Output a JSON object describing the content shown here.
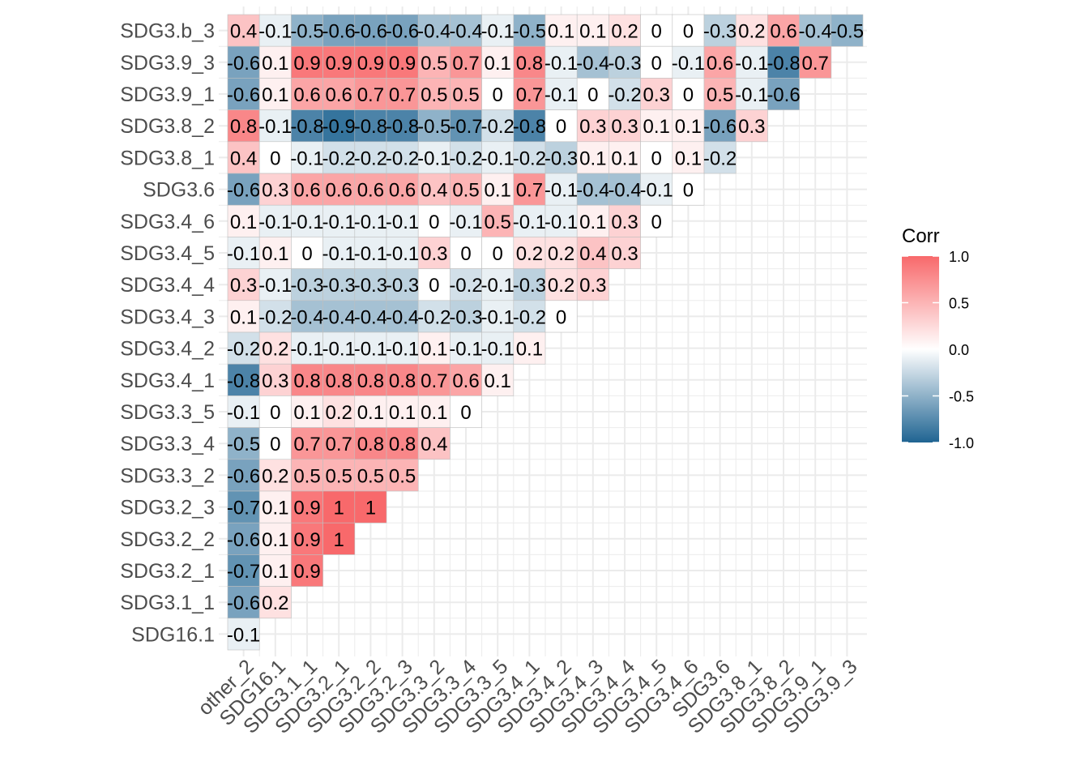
{
  "chart_data": {
    "type": "heatmap",
    "layout": "lower-triangle correlation matrix",
    "x_labels": [
      "other_2",
      "SDG16.1",
      "SDG3.1_1",
      "SDG3.2_1",
      "SDG3.2_2",
      "SDG3.2_3",
      "SDG3.3_2",
      "SDG3.3_4",
      "SDG3.3_5",
      "SDG3.4_1",
      "SDG3.4_2",
      "SDG3.4_3",
      "SDG3.4_4",
      "SDG3.4_5",
      "SDG3.4_6",
      "SDG3.6",
      "SDG3.8_1",
      "SDG3.8_2",
      "SDG3.9_1",
      "SDG3.9_3"
    ],
    "y_labels": [
      "SDG3.b_3",
      "SDG3.9_3",
      "SDG3.9_1",
      "SDG3.8_2",
      "SDG3.8_1",
      "SDG3.6",
      "SDG3.4_6",
      "SDG3.4_5",
      "SDG3.4_4",
      "SDG3.4_3",
      "SDG3.4_2",
      "SDG3.4_1",
      "SDG3.3_5",
      "SDG3.3_4",
      "SDG3.3_2",
      "SDG3.2_3",
      "SDG3.2_2",
      "SDG3.2_1",
      "SDG3.1_1",
      "SDG16.1"
    ],
    "rows": [
      {
        "label": "SDG3.b_3",
        "values": [
          0.4,
          -0.1,
          -0.5,
          -0.6,
          -0.6,
          -0.6,
          -0.4,
          -0.4,
          -0.1,
          -0.5,
          0.1,
          0.1,
          0.2,
          0,
          0,
          -0.3,
          0.2,
          0.6,
          -0.4,
          -0.5
        ],
        "labels": [
          "0.4",
          "-0.1",
          "-0.5",
          "-0.6",
          "-0.6",
          "-0.6",
          "-0.4",
          "-0.4",
          "-0.1",
          "-0.5",
          "0.1",
          "0.1",
          "0.2",
          "0",
          "0",
          "-0.3",
          "0.2",
          "0.6",
          "-0.4",
          "-0.5"
        ]
      },
      {
        "label": "SDG3.9_3",
        "values": [
          -0.6,
          0.1,
          0.9,
          0.9,
          0.9,
          0.9,
          0.5,
          0.7,
          0.1,
          0.8,
          -0.1,
          -0.4,
          -0.3,
          0,
          -0.1,
          0.6,
          -0.1,
          -0.8,
          0.7
        ],
        "labels": [
          "-0.6",
          "0.1",
          "0.9",
          "0.9",
          "0.9",
          "0.9",
          "0.5",
          "0.7",
          "0.1",
          "0.8",
          "-0.1",
          "-0.4",
          "-0.3",
          "0",
          "-0.1",
          "0.6",
          "-0.1",
          "-0.8",
          "0.7"
        ]
      },
      {
        "label": "SDG3.9_1",
        "values": [
          -0.6,
          0.1,
          0.6,
          0.6,
          0.7,
          0.7,
          0.5,
          0.5,
          0,
          0.7,
          -0.1,
          0,
          -0.2,
          0.3,
          0,
          0.5,
          -0.1,
          -0.6
        ],
        "labels": [
          "-0.6",
          "0.1",
          "0.6",
          "0.6",
          "0.7",
          "0.7",
          "0.5",
          "0.5",
          "0",
          "0.7",
          "-0.1",
          "0",
          "-0.2",
          "0.3",
          "0",
          "0.5",
          "-0.1",
          "-0.6"
        ]
      },
      {
        "label": "SDG3.8_2",
        "values": [
          0.8,
          -0.1,
          -0.8,
          -0.9,
          -0.8,
          -0.8,
          -0.5,
          -0.7,
          -0.2,
          -0.8,
          0,
          0.3,
          0.3,
          0.1,
          0.1,
          -0.6,
          0.3
        ],
        "labels": [
          "0.8",
          "-0.1",
          "-0.8",
          "-0.9",
          "-0.8",
          "-0.8",
          "-0.5",
          "-0.7",
          "-0.2",
          "-0.8",
          "0",
          "0.3",
          "0.3",
          "0.1",
          "0.1",
          "-0.6",
          "0.3"
        ]
      },
      {
        "label": "SDG3.8_1",
        "values": [
          0.4,
          0,
          -0.1,
          -0.2,
          -0.2,
          -0.2,
          -0.1,
          -0.2,
          -0.1,
          -0.2,
          -0.3,
          0.1,
          0.1,
          0,
          0.1,
          -0.2
        ],
        "labels": [
          "0.4",
          "0",
          "-0.1",
          "-0.2",
          "-0.2",
          "-0.2",
          "-0.1",
          "-0.2",
          "-0.1",
          "-0.2",
          "-0.3",
          "0.1",
          "0.1",
          "0",
          "0.1",
          "-0.2"
        ]
      },
      {
        "label": "SDG3.6",
        "values": [
          -0.6,
          0.3,
          0.6,
          0.6,
          0.6,
          0.6,
          0.4,
          0.5,
          0.1,
          0.7,
          -0.1,
          -0.4,
          -0.4,
          -0.1,
          0
        ],
        "labels": [
          "-0.6",
          "0.3",
          "0.6",
          "0.6",
          "0.6",
          "0.6",
          "0.4",
          "0.5",
          "0.1",
          "0.7",
          "-0.1",
          "-0.4",
          "-0.4",
          "-0.1",
          "0"
        ]
      },
      {
        "label": "SDG3.4_6",
        "values": [
          0.1,
          -0.1,
          -0.1,
          -0.1,
          -0.1,
          -0.1,
          0,
          -0.1,
          0.5,
          -0.1,
          -0.1,
          0.1,
          0.3,
          0
        ],
        "labels": [
          "0.1",
          "-0.1",
          "-0.1",
          "-0.1",
          "-0.1",
          "-0.1",
          "0",
          "-0.1",
          "0.5",
          "-0.1",
          "-0.1",
          "0.1",
          "0.3",
          "0"
        ]
      },
      {
        "label": "SDG3.4_5",
        "values": [
          -0.1,
          0.1,
          0,
          -0.1,
          -0.1,
          -0.1,
          0.3,
          0,
          0,
          0.2,
          0.2,
          0.4,
          0.3
        ],
        "labels": [
          "-0.1",
          "0.1",
          "0",
          "-0.1",
          "-0.1",
          "-0.1",
          "0.3",
          "0",
          "0",
          "0.2",
          "0.2",
          "0.4",
          "0.3"
        ]
      },
      {
        "label": "SDG3.4_4",
        "values": [
          0.3,
          -0.1,
          -0.3,
          -0.3,
          -0.3,
          -0.3,
          0,
          -0.2,
          -0.1,
          -0.3,
          0.2,
          0.3
        ],
        "labels": [
          "0.3",
          "-0.1",
          "-0.3",
          "-0.3",
          "-0.3",
          "-0.3",
          "0",
          "-0.2",
          "-0.1",
          "-0.3",
          "0.2",
          "0.3"
        ]
      },
      {
        "label": "SDG3.4_3",
        "values": [
          0.1,
          -0.2,
          -0.4,
          -0.4,
          -0.4,
          -0.4,
          -0.2,
          -0.3,
          -0.1,
          -0.2,
          0
        ],
        "labels": [
          "0.1",
          "-0.2",
          "-0.4",
          "-0.4",
          "-0.4",
          "-0.4",
          "-0.2",
          "-0.3",
          "-0.1",
          "-0.2",
          "0"
        ]
      },
      {
        "label": "SDG3.4_2",
        "values": [
          -0.2,
          0.2,
          -0.1,
          -0.1,
          -0.1,
          -0.1,
          0.1,
          -0.1,
          -0.1,
          0.1
        ],
        "labels": [
          "-0.2",
          "0.2",
          "-0.1",
          "-0.1",
          "-0.1",
          "-0.1",
          "0.1",
          "-0.1",
          "-0.1",
          "0.1"
        ]
      },
      {
        "label": "SDG3.4_1",
        "values": [
          -0.8,
          0.3,
          0.8,
          0.8,
          0.8,
          0.8,
          0.7,
          0.6,
          0.1
        ],
        "labels": [
          "-0.8",
          "0.3",
          "0.8",
          "0.8",
          "0.8",
          "0.8",
          "0.7",
          "0.6",
          "0.1"
        ]
      },
      {
        "label": "SDG3.3_5",
        "values": [
          -0.1,
          0,
          0.1,
          0.2,
          0.1,
          0.1,
          0.1,
          0
        ],
        "labels": [
          "-0.1",
          "0",
          "0.1",
          "0.2",
          "0.1",
          "0.1",
          "0.1",
          "0"
        ]
      },
      {
        "label": "SDG3.3_4",
        "values": [
          -0.5,
          0,
          0.7,
          0.7,
          0.8,
          0.8,
          0.4
        ],
        "labels": [
          "-0.5",
          "0",
          "0.7",
          "0.7",
          "0.8",
          "0.8",
          "0.4"
        ]
      },
      {
        "label": "SDG3.3_2",
        "values": [
          -0.6,
          0.2,
          0.5,
          0.5,
          0.5,
          0.5
        ],
        "labels": [
          "-0.6",
          "0.2",
          "0.5",
          "0.5",
          "0.5",
          "0.5"
        ]
      },
      {
        "label": "SDG3.2_3",
        "values": [
          -0.7,
          0.1,
          0.9,
          1,
          1
        ],
        "labels": [
          "-0.7",
          "0.1",
          "0.9",
          "1",
          "1"
        ]
      },
      {
        "label": "SDG3.2_2",
        "values": [
          -0.6,
          0.1,
          0.9,
          1
        ],
        "labels": [
          "-0.6",
          "0.1",
          "0.9",
          "1"
        ]
      },
      {
        "label": "SDG3.2_1",
        "values": [
          -0.7,
          0.1,
          0.9
        ],
        "labels": [
          "-0.7",
          "0.1",
          "0.9"
        ]
      },
      {
        "label": "SDG3.1_1",
        "values": [
          -0.6,
          0.2
        ],
        "labels": [
          "-0.6",
          "0.2"
        ]
      },
      {
        "label": "SDG16.1",
        "values": [
          -0.1
        ],
        "labels": [
          "-0.1"
        ]
      }
    ],
    "legend": {
      "title": "Corr",
      "placement": "right",
      "ticks": [
        {
          "value": 1.0,
          "label": "1.0"
        },
        {
          "value": 0.5,
          "label": "0.5"
        },
        {
          "value": 0.0,
          "label": "0.0"
        },
        {
          "value": -0.5,
          "label": "-0.5"
        },
        {
          "value": -1.0,
          "label": "-1.0"
        }
      ],
      "range": [
        -1,
        1
      ]
    },
    "colors": {
      "low": "#1f6492",
      "mid": "#ffffff",
      "high": "#f8696b",
      "grid": "#ebebeb",
      "cell_border": "#bfbfbf"
    },
    "grid": true
  }
}
